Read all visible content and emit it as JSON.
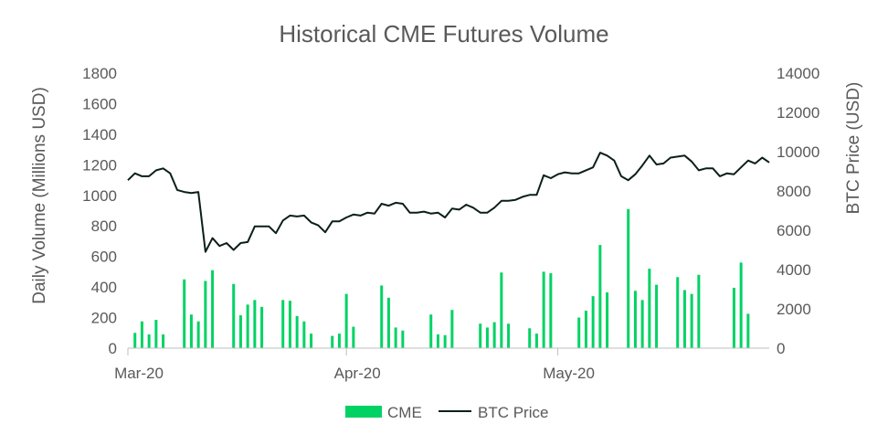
{
  "chart_data": {
    "type": "bar",
    "title": "Historical CME Futures Volume",
    "ylabel": "Daily Volume (Millions USD)",
    "y2label": "BTC Price (USD)",
    "ylim": [
      0,
      1800
    ],
    "y_ticks": [
      0,
      200,
      400,
      600,
      800,
      1000,
      1200,
      1400,
      1600,
      1800
    ],
    "y2lim": [
      0,
      14000
    ],
    "y2_ticks": [
      0,
      2000,
      4000,
      6000,
      8000,
      10000,
      12000,
      14000
    ],
    "x_tick_labels": [
      "Mar-20",
      "Apr-20",
      "May-20"
    ],
    "x_tick_dates": [
      "2020-03-01",
      "2020-04-01",
      "2020-05-01"
    ],
    "x_range": [
      "2020-03-01",
      "2020-05-31"
    ],
    "grid": false,
    "legend_position": "bottom",
    "colors": {
      "cme": "#00d364",
      "btc": "#0b1f1a",
      "axis": "#bfbfbf",
      "text": "#595959"
    },
    "series": [
      {
        "name": "CME",
        "kind": "bar",
        "axis": "left",
        "points": [
          [
            "2020-03-02",
            100
          ],
          [
            "2020-03-03",
            175
          ],
          [
            "2020-03-04",
            90
          ],
          [
            "2020-03-05",
            185
          ],
          [
            "2020-03-06",
            90
          ],
          [
            "2020-03-09",
            450
          ],
          [
            "2020-03-10",
            220
          ],
          [
            "2020-03-11",
            175
          ],
          [
            "2020-03-12",
            440
          ],
          [
            "2020-03-13",
            510
          ],
          [
            "2020-03-16",
            420
          ],
          [
            "2020-03-17",
            215
          ],
          [
            "2020-03-18",
            285
          ],
          [
            "2020-03-19",
            315
          ],
          [
            "2020-03-20",
            270
          ],
          [
            "2020-03-23",
            315
          ],
          [
            "2020-03-24",
            310
          ],
          [
            "2020-03-25",
            210
          ],
          [
            "2020-03-26",
            175
          ],
          [
            "2020-03-27",
            95
          ],
          [
            "2020-03-30",
            80
          ],
          [
            "2020-03-31",
            95
          ],
          [
            "2020-04-01",
            355
          ],
          [
            "2020-04-02",
            140
          ],
          [
            "2020-04-06",
            410
          ],
          [
            "2020-04-07",
            330
          ],
          [
            "2020-04-08",
            135
          ],
          [
            "2020-04-09",
            115
          ],
          [
            "2020-04-13",
            220
          ],
          [
            "2020-04-14",
            90
          ],
          [
            "2020-04-15",
            85
          ],
          [
            "2020-04-16",
            250
          ],
          [
            "2020-04-20",
            160
          ],
          [
            "2020-04-21",
            135
          ],
          [
            "2020-04-22",
            170
          ],
          [
            "2020-04-23",
            495
          ],
          [
            "2020-04-24",
            160
          ],
          [
            "2020-04-27",
            130
          ],
          [
            "2020-04-28",
            95
          ],
          [
            "2020-04-29",
            500
          ],
          [
            "2020-04-30",
            490
          ],
          [
            "2020-05-04",
            200
          ],
          [
            "2020-05-05",
            245
          ],
          [
            "2020-05-06",
            340
          ],
          [
            "2020-05-07",
            675
          ],
          [
            "2020-05-08",
            365
          ],
          [
            "2020-05-11",
            910
          ],
          [
            "2020-05-12",
            375
          ],
          [
            "2020-05-13",
            315
          ],
          [
            "2020-05-14",
            520
          ],
          [
            "2020-05-15",
            415
          ],
          [
            "2020-05-18",
            465
          ],
          [
            "2020-05-19",
            380
          ],
          [
            "2020-05-20",
            355
          ],
          [
            "2020-05-21",
            480
          ],
          [
            "2020-05-26",
            395
          ],
          [
            "2020-05-27",
            560
          ],
          [
            "2020-05-28",
            225
          ]
        ]
      },
      {
        "name": "BTC Price",
        "kind": "line",
        "axis": "right",
        "points": [
          [
            "2020-03-01",
            8550
          ],
          [
            "2020-03-02",
            8900
          ],
          [
            "2020-03-03",
            8750
          ],
          [
            "2020-03-04",
            8750
          ],
          [
            "2020-03-05",
            9050
          ],
          [
            "2020-03-06",
            9150
          ],
          [
            "2020-03-07",
            8900
          ],
          [
            "2020-03-08",
            8050
          ],
          [
            "2020-03-09",
            7950
          ],
          [
            "2020-03-10",
            7900
          ],
          [
            "2020-03-11",
            7950
          ],
          [
            "2020-03-12",
            4900
          ],
          [
            "2020-03-13",
            5600
          ],
          [
            "2020-03-14",
            5200
          ],
          [
            "2020-03-15",
            5350
          ],
          [
            "2020-03-16",
            5000
          ],
          [
            "2020-03-17",
            5350
          ],
          [
            "2020-03-18",
            5400
          ],
          [
            "2020-03-19",
            6200
          ],
          [
            "2020-03-20",
            6200
          ],
          [
            "2020-03-21",
            6200
          ],
          [
            "2020-03-22",
            5850
          ],
          [
            "2020-03-23",
            6500
          ],
          [
            "2020-03-24",
            6750
          ],
          [
            "2020-03-25",
            6700
          ],
          [
            "2020-03-26",
            6750
          ],
          [
            "2020-03-27",
            6400
          ],
          [
            "2020-03-28",
            6250
          ],
          [
            "2020-03-29",
            5900
          ],
          [
            "2020-03-30",
            6450
          ],
          [
            "2020-03-31",
            6450
          ],
          [
            "2020-04-01",
            6650
          ],
          [
            "2020-04-02",
            6800
          ],
          [
            "2020-04-03",
            6750
          ],
          [
            "2020-04-04",
            6900
          ],
          [
            "2020-04-05",
            6850
          ],
          [
            "2020-04-06",
            7350
          ],
          [
            "2020-04-07",
            7250
          ],
          [
            "2020-04-08",
            7400
          ],
          [
            "2020-04-09",
            7350
          ],
          [
            "2020-04-10",
            6900
          ],
          [
            "2020-04-11",
            6900
          ],
          [
            "2020-04-12",
            6950
          ],
          [
            "2020-04-13",
            6850
          ],
          [
            "2020-04-14",
            6900
          ],
          [
            "2020-04-15",
            6650
          ],
          [
            "2020-04-16",
            7100
          ],
          [
            "2020-04-17",
            7050
          ],
          [
            "2020-04-18",
            7300
          ],
          [
            "2020-04-19",
            7150
          ],
          [
            "2020-04-20",
            6900
          ],
          [
            "2020-04-21",
            6900
          ],
          [
            "2020-04-22",
            7150
          ],
          [
            "2020-04-23",
            7500
          ],
          [
            "2020-04-24",
            7500
          ],
          [
            "2020-04-25",
            7550
          ],
          [
            "2020-04-26",
            7700
          ],
          [
            "2020-04-27",
            7800
          ],
          [
            "2020-04-28",
            7800
          ],
          [
            "2020-04-29",
            8800
          ],
          [
            "2020-04-30",
            8650
          ],
          [
            "2020-05-01",
            8850
          ],
          [
            "2020-05-02",
            8950
          ],
          [
            "2020-05-03",
            8900
          ],
          [
            "2020-05-04",
            8900
          ],
          [
            "2020-05-05",
            9050
          ],
          [
            "2020-05-06",
            9200
          ],
          [
            "2020-05-07",
            9950
          ],
          [
            "2020-05-08",
            9800
          ],
          [
            "2020-05-09",
            9550
          ],
          [
            "2020-05-10",
            8750
          ],
          [
            "2020-05-11",
            8550
          ],
          [
            "2020-05-12",
            8850
          ],
          [
            "2020-05-13",
            9300
          ],
          [
            "2020-05-14",
            9800
          ],
          [
            "2020-05-15",
            9350
          ],
          [
            "2020-05-16",
            9400
          ],
          [
            "2020-05-17",
            9700
          ],
          [
            "2020-05-18",
            9750
          ],
          [
            "2020-05-19",
            9800
          ],
          [
            "2020-05-20",
            9500
          ],
          [
            "2020-05-21",
            9050
          ],
          [
            "2020-05-22",
            9150
          ],
          [
            "2020-05-23",
            9150
          ],
          [
            "2020-05-24",
            8750
          ],
          [
            "2020-05-25",
            8900
          ],
          [
            "2020-05-26",
            8850
          ],
          [
            "2020-05-27",
            9200
          ],
          [
            "2020-05-28",
            9550
          ],
          [
            "2020-05-29",
            9400
          ],
          [
            "2020-05-30",
            9700
          ],
          [
            "2020-05-31",
            9450
          ]
        ]
      }
    ]
  }
}
